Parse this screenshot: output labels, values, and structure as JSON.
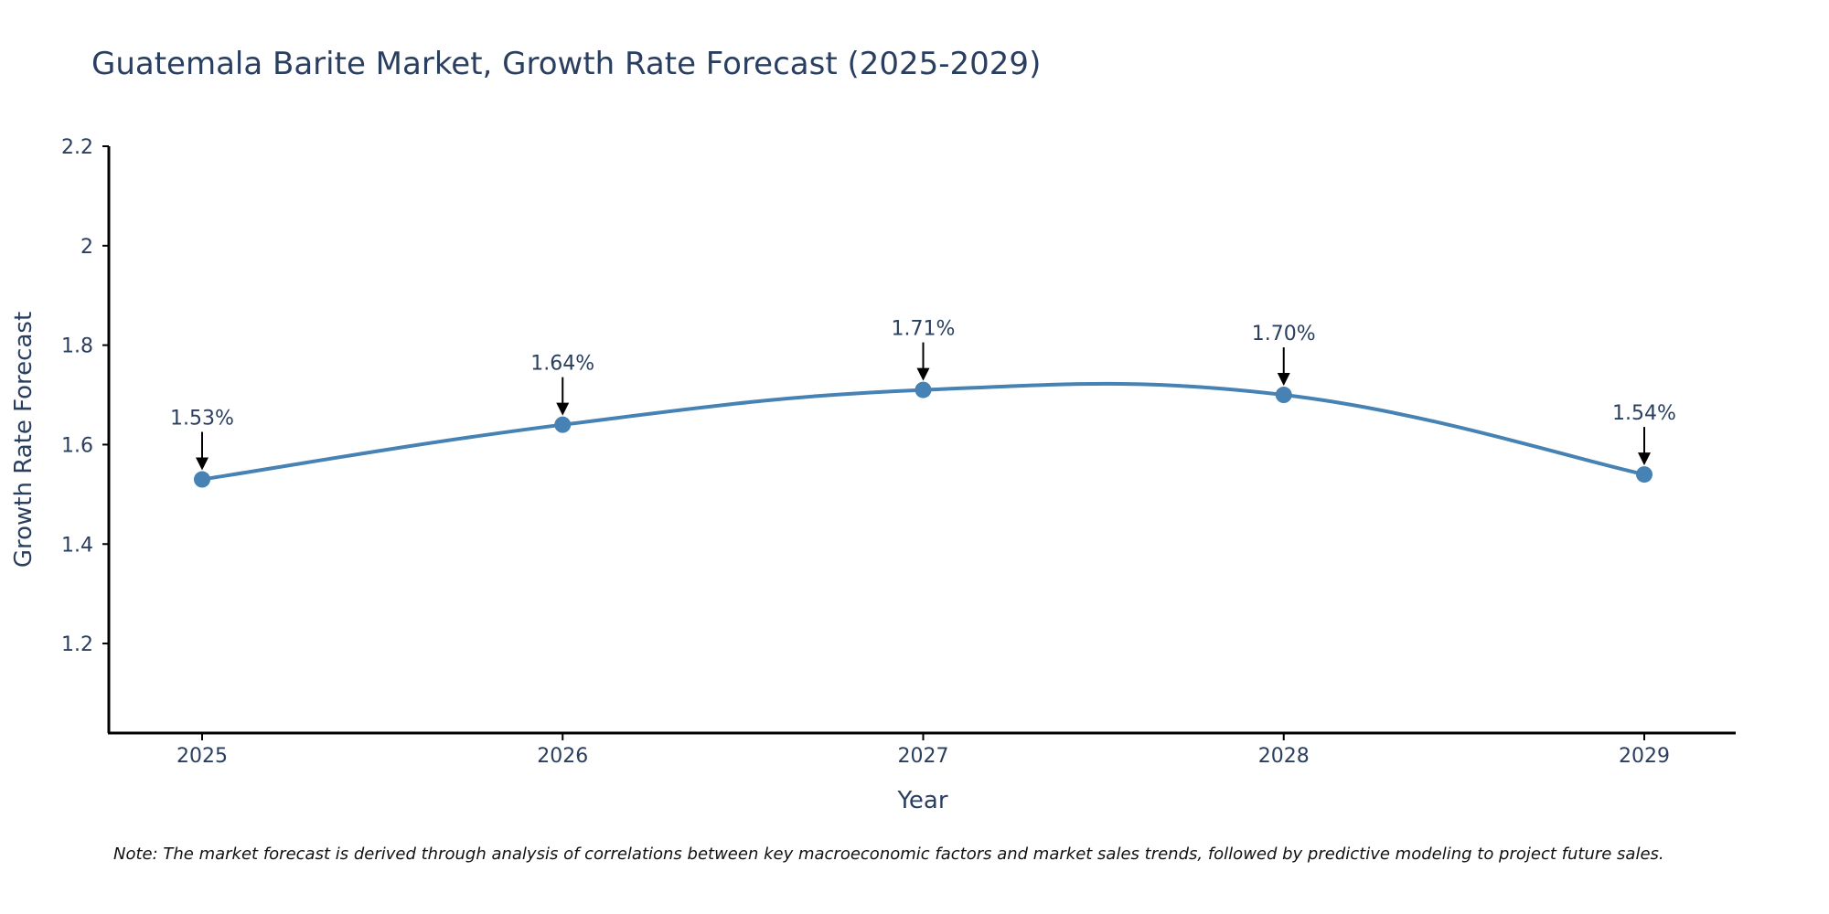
{
  "chart_data": {
    "type": "line",
    "title": "Guatemala Barite Market, Growth Rate Forecast (2025-2029)",
    "xlabel": "Year",
    "ylabel": "Growth Rate Forecast",
    "categories": [
      "2025",
      "2026",
      "2027",
      "2028",
      "2029"
    ],
    "values": [
      1.53,
      1.64,
      1.71,
      1.7,
      1.54
    ],
    "data_labels": [
      "1.53%",
      "1.64%",
      "1.71%",
      "1.70%",
      "1.54%"
    ],
    "yticks": [
      1.2,
      1.4,
      1.6,
      1.8,
      2,
      2.2
    ],
    "ytick_labels": [
      "1.2",
      "1.4",
      "1.6",
      "1.8",
      "2",
      "2.2"
    ],
    "ylim": [
      1.02,
      2.2
    ],
    "grid": false,
    "line_color": "#4682b4",
    "note": "Note: The market forecast is derived through analysis of correlations between key macroeconomic factors and market sales trends, followed by predictive modeling to project future sales."
  }
}
